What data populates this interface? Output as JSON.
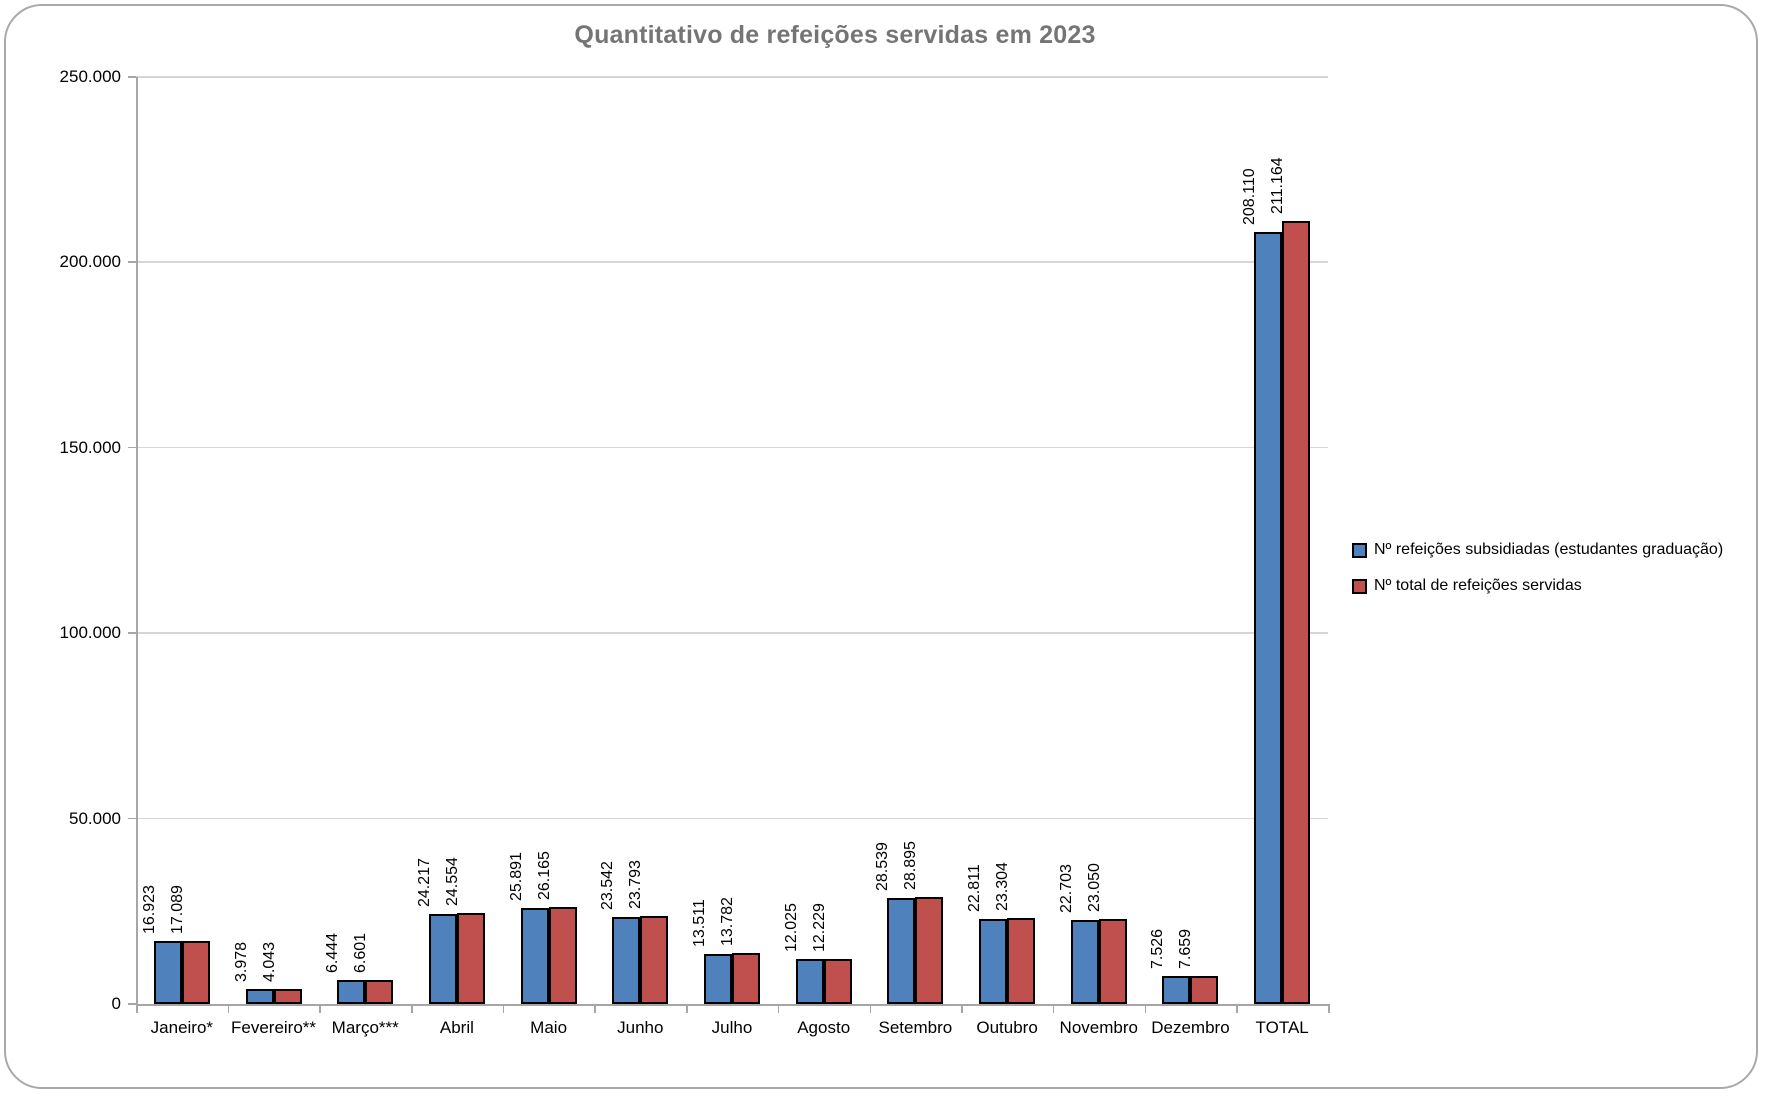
{
  "chart_data": {
    "type": "bar",
    "title": "Quantitativo de refeições servidas em 2023",
    "categories": [
      "Janeiro*",
      "Fevereiro**",
      "Março***",
      "Abril",
      "Maio",
      "Junho",
      "Julho",
      "Agosto",
      "Setembro",
      "Outubro",
      "Novembro",
      "Dezembro",
      "TOTAL"
    ],
    "series": [
      {
        "name": "Nº refeições subsidiadas (estudantes graduação)",
        "color": "#4F81BD",
        "values": [
          16923,
          3978,
          6444,
          24217,
          25891,
          23542,
          13511,
          12025,
          28539,
          22811,
          22703,
          7526,
          208110
        ],
        "value_labels": [
          "16.923",
          "3.978",
          "6.444",
          "24.217",
          "25.891",
          "23.542",
          "13.511",
          "12.025",
          "28.539",
          "22.811",
          "22.703",
          "7.526",
          "208.110"
        ]
      },
      {
        "name": "Nº total de refeições servidas",
        "color": "#C0504D",
        "values": [
          17089,
          4043,
          6601,
          24554,
          26165,
          23793,
          13782,
          12229,
          28895,
          23304,
          23050,
          7659,
          211164
        ],
        "value_labels": [
          "17.089",
          "4.043",
          "6.601",
          "24.554",
          "26.165",
          "23.793",
          "13.782",
          "12.229",
          "28.895",
          "23.304",
          "23.050",
          "7.659",
          "211.164"
        ]
      }
    ],
    "y_axis": {
      "min": 0,
      "max": 250000,
      "step": 50000,
      "tick_labels": [
        "0",
        "50.000",
        "100.000",
        "150.000",
        "200.000",
        "250.000"
      ]
    },
    "data_labels": {
      "rotation": -90,
      "position": "outside-end"
    },
    "grid": true,
    "legend_position": "right",
    "styles": {
      "title_color": "#757575",
      "axis_color": "#a6a6a6",
      "grid_color": "#d6d6d6",
      "frame_color": "#a9a9a9",
      "bar_border_color": "#000000"
    }
  }
}
